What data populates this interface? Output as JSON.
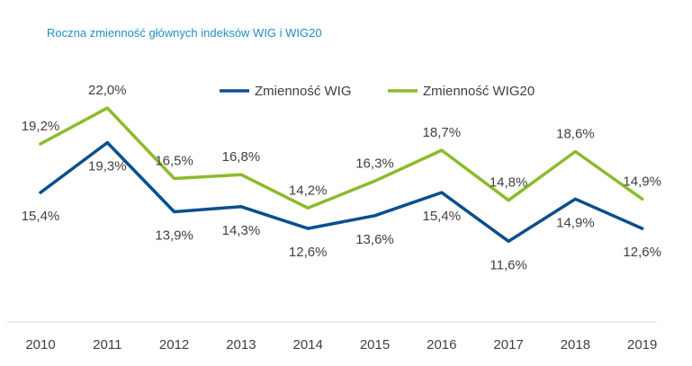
{
  "chart_data": {
    "type": "line",
    "title": "Roczna zmienność głównych indeksów WIG i WIG20",
    "categories": [
      "2010",
      "2011",
      "2012",
      "2013",
      "2014",
      "2015",
      "2016",
      "2017",
      "2018",
      "2019"
    ],
    "series": [
      {
        "name": "Zmienność WIG",
        "color": "#0a4f8c",
        "values": [
          15.4,
          19.3,
          13.9,
          14.3,
          12.6,
          13.6,
          15.4,
          11.6,
          14.9,
          12.6
        ],
        "labels": [
          "15,4%",
          "19,3%",
          "13,9%",
          "14,3%",
          "12,6%",
          "13,6%",
          "15,4%",
          "11,6%",
          "14,9%",
          "12,6%"
        ]
      },
      {
        "name": "Zmienność WIG20",
        "color": "#8cbb2b",
        "values": [
          19.2,
          22.0,
          16.5,
          16.8,
          14.2,
          16.3,
          18.7,
          14.8,
          18.6,
          14.9
        ],
        "labels": [
          "19,2%",
          "22,0%",
          "16,5%",
          "16,8%",
          "14,2%",
          "16,3%",
          "18,7%",
          "14,8%",
          "18,6%",
          "14,9%"
        ]
      }
    ],
    "xlabel": "",
    "ylabel": "",
    "grid": false,
    "legend": "top-right"
  }
}
